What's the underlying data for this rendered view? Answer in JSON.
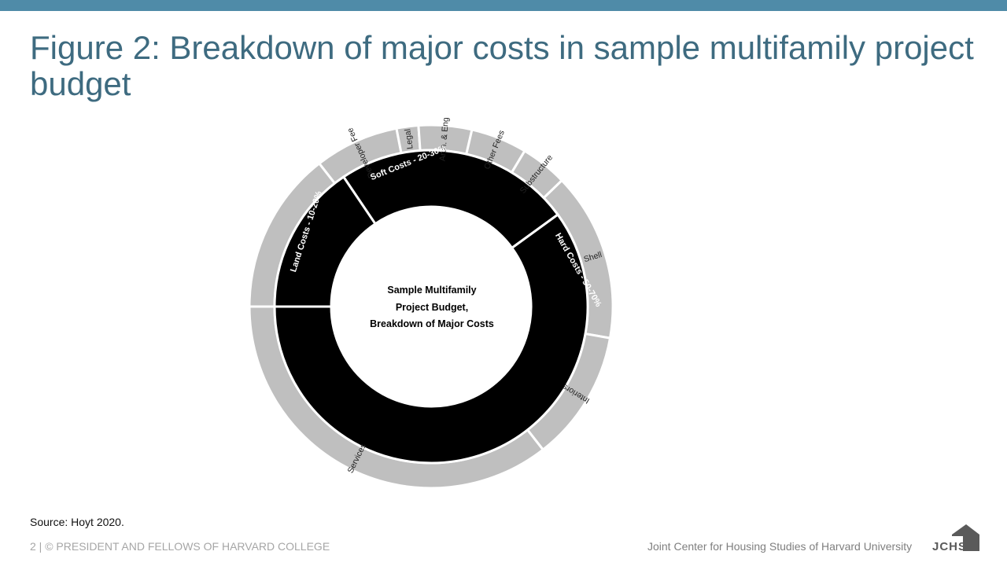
{
  "slide": {
    "title": "Figure 2: Breakdown of major costs in sample multifamily project budget",
    "source": "Source: Hoyt 2020.",
    "footer_left": "2 | © PRESIDENT AND FELLOWS OF HARVARD COLLEGE",
    "footer_right": "Joint Center for Housing Studies of Harvard University",
    "logo_text": "JCHS"
  },
  "colors": {
    "accent_bar": "#4f8ba8",
    "title": "#3e6b80",
    "inner_ring": "#000000",
    "outer_ring": "#bfbfbf"
  },
  "diagram": {
    "center_label": [
      "Sample Multifamily",
      "Project Budget,",
      "Breakdown of Major Costs"
    ],
    "inner_ring": [
      {
        "label": "Soft Costs - 20-30%",
        "start": 326,
        "end": 54
      },
      {
        "label": "Hard Costs - 50-70%",
        "start": 54,
        "end": 270
      },
      {
        "label": "Land Costs - 10-20%",
        "start": 270,
        "end": 326
      }
    ],
    "outer_ring": [
      {
        "label": "Developer Fee",
        "start": 322,
        "end": 349
      },
      {
        "label": "Legal",
        "start": 349,
        "end": 356
      },
      {
        "label": "Arch. & Eng.",
        "start": 356,
        "end": 13
      },
      {
        "label": "Other Fees",
        "start": 13,
        "end": 31
      },
      {
        "label": "Substructure",
        "start": 31,
        "end": 46
      },
      {
        "label": "Shell",
        "start": 46,
        "end": 100
      },
      {
        "label": "Interiors",
        "start": 100,
        "end": 142
      },
      {
        "label": "Services",
        "start": 142,
        "end": 270
      },
      {
        "label": "",
        "start": 270,
        "end": 322
      }
    ]
  }
}
